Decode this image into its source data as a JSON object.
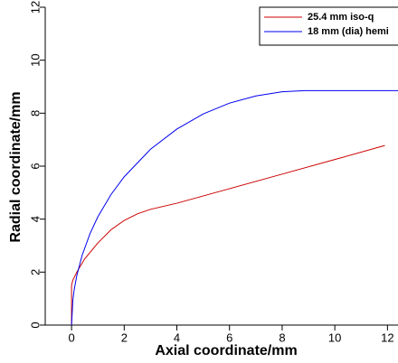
{
  "chart_data": {
    "type": "line",
    "xlabel": "Axial coordinate/mm",
    "ylabel": "Radial coordinate/mm",
    "xlim": [
      -1,
      12.4
    ],
    "ylim": [
      0,
      12
    ],
    "xticks": [
      0,
      2,
      4,
      6,
      8,
      10,
      12
    ],
    "yticks": [
      0,
      2,
      4,
      6,
      8,
      10,
      12
    ],
    "legend": "upper right",
    "series": [
      {
        "name": "25.4 mm iso-q",
        "color": "#cc0000",
        "x": [
          0,
          0,
          0.05,
          0.2,
          0.5,
          1,
          1.5,
          2,
          2.5,
          3,
          4,
          6,
          8,
          10,
          11.9
        ],
        "values": [
          0,
          1.5,
          1.7,
          2.0,
          2.5,
          3.1,
          3.6,
          3.95,
          4.2,
          4.37,
          4.6,
          5.15,
          5.7,
          6.25,
          6.78
        ]
      },
      {
        "name": "18 mm (dia) hemi",
        "color": "#0000ee",
        "x": [
          0,
          0.05,
          0.1,
          0.2,
          0.4,
          0.7,
          1,
          1.5,
          2,
          3,
          4,
          5,
          6,
          7,
          8,
          8.85,
          10,
          11,
          12.4
        ],
        "values": [
          0,
          0.94,
          1.33,
          1.87,
          2.63,
          3.45,
          4.09,
          4.93,
          5.6,
          6.64,
          7.4,
          7.97,
          8.38,
          8.65,
          8.81,
          8.85,
          8.85,
          8.85,
          8.85
        ]
      }
    ]
  }
}
